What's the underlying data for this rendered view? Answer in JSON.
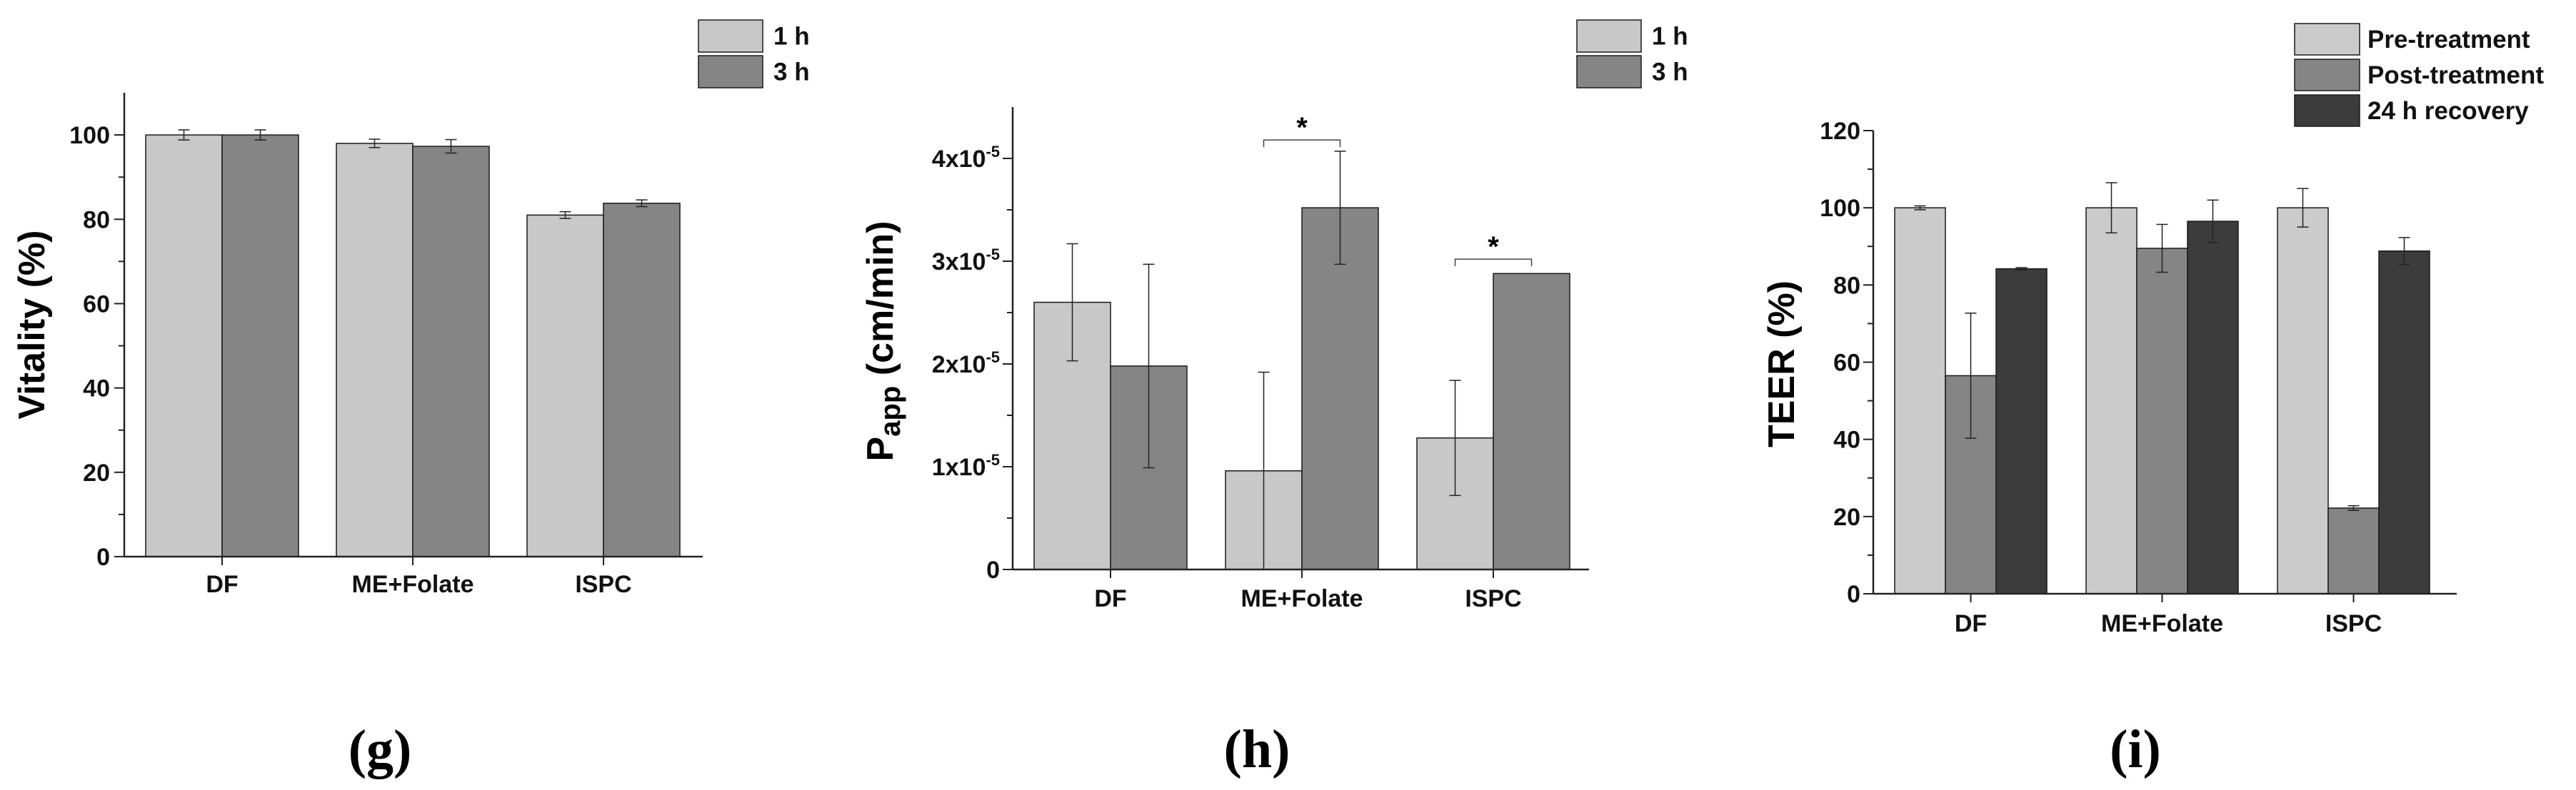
{
  "chart_data": [
    {
      "panel": "g",
      "type": "bar",
      "categories": [
        "DF",
        "ME+Folate",
        "ISPC"
      ],
      "series": [
        {
          "name": "1 h",
          "color": "#c8c8c8",
          "values": [
            100,
            98,
            81
          ],
          "errors": [
            1.2,
            1.0,
            0.8
          ]
        },
        {
          "name": "3 h",
          "color": "#858585",
          "values": [
            100,
            97.3,
            83.8
          ],
          "errors": [
            1.2,
            1.6,
            0.8
          ]
        }
      ],
      "ylabel": "Vitality (%)",
      "ylim": [
        0,
        110
      ],
      "yticks": [
        0,
        20,
        40,
        60,
        80,
        100
      ],
      "ytick_labels": [
        "0",
        "20",
        "40",
        "60",
        "80",
        "100"
      ],
      "significance": [],
      "panel_label": "(g)"
    },
    {
      "panel": "h",
      "type": "bar",
      "categories": [
        "DF",
        "ME+Folate",
        "ISPC"
      ],
      "series": [
        {
          "name": "1 h",
          "color": "#c8c8c8",
          "values": [
            2.6,
            0.96,
            1.28
          ],
          "errors": [
            0.57,
            0.96,
            0.56
          ]
        },
        {
          "name": "3 h",
          "color": "#858585",
          "values": [
            1.98,
            3.52,
            2.88
          ],
          "errors": [
            0.99,
            0.55,
            0
          ]
        }
      ],
      "ylabel_main": "P",
      "ylabel_sub": "app",
      "ylabel_rest": " (cm/min)",
      "ylim": [
        0,
        4.5
      ],
      "yticks": [
        0,
        1,
        2,
        3,
        4
      ],
      "ytick_mant": [
        "0",
        "1x10",
        "2x10",
        "3x10",
        "4x10"
      ],
      "ytick_exp": [
        "",
        "-5",
        "-5",
        "-5",
        "-5"
      ],
      "significance": [
        {
          "category": 1,
          "label": "*",
          "y": 4.18
        },
        {
          "category": 2,
          "label": "*",
          "y": 3.02
        }
      ],
      "panel_label": "(h)"
    },
    {
      "panel": "i",
      "type": "bar",
      "categories": [
        "DF",
        "ME+Folate",
        "ISPC"
      ],
      "series": [
        {
          "name": "Pre-treatment",
          "color": "#cbcbcb",
          "values": [
            100,
            100,
            100
          ],
          "errors": [
            0.5,
            6.5,
            5
          ]
        },
        {
          "name": "Post-treatment",
          "color": "#858585",
          "values": [
            56.5,
            89.5,
            22.2
          ],
          "errors": [
            16.2,
            6.2,
            0.6
          ]
        },
        {
          "name": "24 h recovery",
          "color": "#3c3c3c",
          "values": [
            84.2,
            96.5,
            88.8
          ],
          "errors": [
            0.3,
            5.5,
            3.5
          ]
        }
      ],
      "ylabel": "TEER (%)",
      "ylim": [
        0,
        120
      ],
      "yticks": [
        0,
        20,
        40,
        60,
        80,
        100,
        120
      ],
      "ytick_labels": [
        "0",
        "20",
        "40",
        "60",
        "80",
        "100",
        "120"
      ],
      "significance": [],
      "panel_label": "(i)"
    }
  ]
}
